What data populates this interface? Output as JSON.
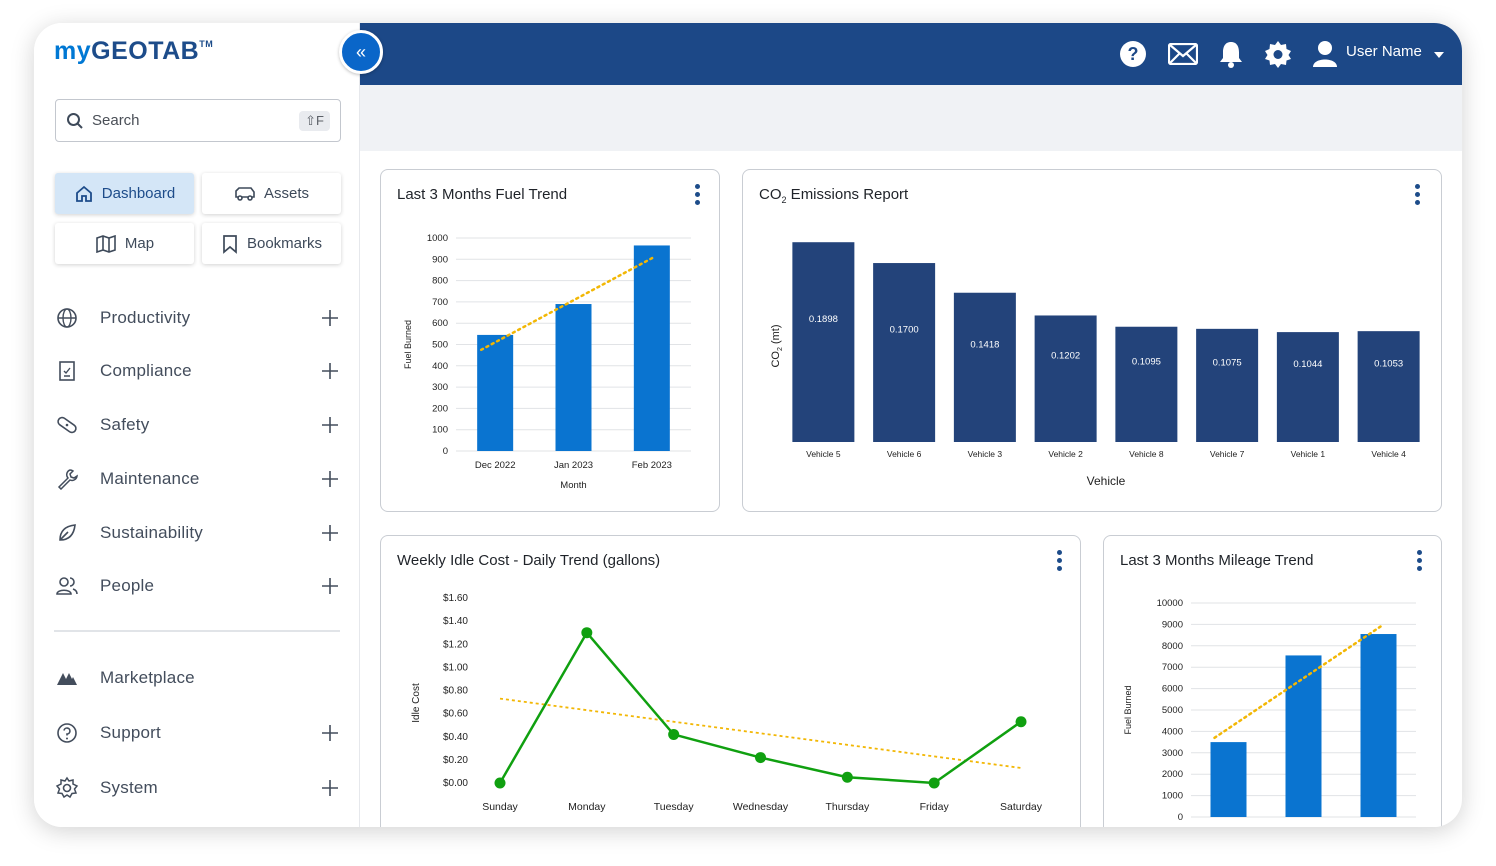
{
  "brand": {
    "logo_my": "my",
    "logo_geo": "GEOTAB",
    "logo_tm": "TM"
  },
  "search": {
    "placeholder": "Search",
    "shortcut": "⇧F"
  },
  "quick": {
    "dashboard": "Dashboard",
    "assets": "Assets",
    "map": "Map",
    "bookmarks": "Bookmarks"
  },
  "nav": {
    "productivity": "Productivity",
    "compliance": "Compliance",
    "safety": "Safety",
    "maintenance": "Maintenance",
    "sustainability": "Sustainability",
    "people": "People",
    "marketplace": "Marketplace",
    "support": "Support",
    "system": "System"
  },
  "header": {
    "user_name": "User Name"
  },
  "colors": {
    "header": "#1c4887",
    "accent": "#0078d4",
    "bar_blue": "#0a74d0",
    "bar_navy": "#23437a",
    "trend": "#f2b705",
    "line_green": "#10a010"
  },
  "cards": {
    "fuel": {
      "title": "Last 3 Months Fuel Trend"
    },
    "co2": {
      "title_pre": "CO",
      "title_sub": "2",
      "title_post": " Emissions Report"
    },
    "idle": {
      "title": "Weekly Idle Cost - Daily Trend (gallons)"
    },
    "mileage": {
      "title": "Last 3 Months Mileage Trend"
    }
  },
  "chart_data": [
    {
      "id": "fuel",
      "type": "bar",
      "categories": [
        "Dec 2022",
        "Jan 2023",
        "Feb 2023"
      ],
      "values": [
        545,
        690,
        965
      ],
      "ylabel": "Fuel Burned",
      "xlabel": "Month",
      "ylim": [
        0,
        1000
      ],
      "yticks": [
        0,
        100,
        200,
        300,
        400,
        500,
        600,
        700,
        800,
        900,
        1000
      ],
      "trendline": [
        475,
        910
      ],
      "grid": true
    },
    {
      "id": "co2",
      "type": "bar",
      "categories": [
        "Vehicle 5",
        "Vehicle 6",
        "Vehicle 3",
        "Vehicle 2",
        "Vehicle 8",
        "Vehicle 7",
        "Vehicle 1",
        "Vehicle 4"
      ],
      "values": [
        0.1898,
        0.17,
        0.1418,
        0.1202,
        0.1095,
        0.1075,
        0.1044,
        0.1053
      ],
      "data_labels": [
        "0.1898",
        "0.1700",
        "0.1418",
        "0.1202",
        "0.1095",
        "0.1075",
        "0.1044",
        "0.1053"
      ],
      "ylabel_pre": "CO",
      "ylabel_sub": "2",
      "ylabel_post": " (mt)",
      "xlabel": "Vehicle",
      "ylim": [
        0,
        0.19
      ]
    },
    {
      "id": "idle",
      "type": "line",
      "categories": [
        "Sunday",
        "Monday",
        "Tuesday",
        "Wednesday",
        "Thursday",
        "Friday",
        "Saturday"
      ],
      "values": [
        0.0,
        1.3,
        0.42,
        0.22,
        0.05,
        0.0,
        0.53
      ],
      "ylabel": "Idle Cost",
      "ylim": [
        0,
        1.6
      ],
      "yticks": [
        "$0.00",
        "$0.20",
        "$0.40",
        "$0.60",
        "$0.80",
        "$1.00",
        "$1.20",
        "$1.40",
        "$1.60"
      ],
      "trendline": [
        0.73,
        0.13
      ]
    },
    {
      "id": "mileage",
      "type": "bar",
      "categories": [
        "",
        "",
        ""
      ],
      "values": [
        3500,
        7550,
        8550
      ],
      "ylabel": "Fuel Burned",
      "ylim": [
        0,
        10000
      ],
      "yticks": [
        0,
        1000,
        2000,
        3000,
        4000,
        5000,
        6000,
        7000,
        8000,
        9000,
        10000
      ],
      "trendline": [
        3700,
        8900
      ]
    }
  ]
}
